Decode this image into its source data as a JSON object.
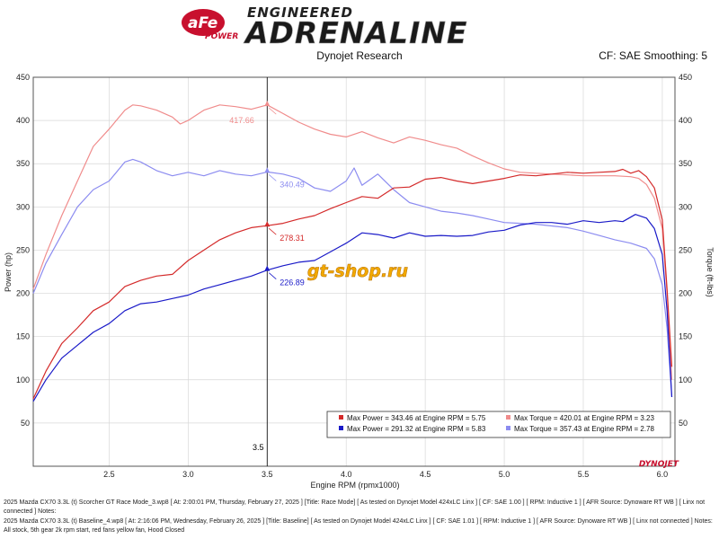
{
  "header": {
    "brand_mark": "aFe",
    "brand_power": "POWER",
    "banner_top": "ENGINEERED",
    "banner_main": "ADRENALINE",
    "subtitle": "Dynojet Research",
    "cf_info": "CF: SAE Smoothing: 5",
    "watermark": "gt-shop.ru",
    "dynojet_logo": "DYNOJET"
  },
  "colors": {
    "power_modified": "#d42a2a",
    "torque_modified": "#f08c8c",
    "power_baseline": "#1a1ac8",
    "torque_baseline": "#8c8cf0",
    "grid": "#d8d8d8",
    "plot_border": "#555555"
  },
  "chart_data": {
    "type": "line",
    "xlabel": "Engine RPM (rpmx1000)",
    "ylabel": "Power (hp)",
    "y2label": "Torque (ft-lbs)",
    "xlim": [
      2.02,
      6.08
    ],
    "ylim": [
      0,
      450
    ],
    "y2lim": [
      0,
      450
    ],
    "xticks": [
      "2.5",
      "3.0",
      "3.5",
      "4.0",
      "4.5",
      "5.0",
      "5.5",
      "6.0"
    ],
    "yticks": [
      "50",
      "100",
      "150",
      "200",
      "250",
      "300",
      "350",
      "400",
      "450"
    ],
    "cursor": {
      "x": 3.5,
      "label": "3.5"
    },
    "series": [
      {
        "axis": "y2",
        "color_key": "torque_modified",
        "x": [
          2.02,
          2.1,
          2.2,
          2.3,
          2.4,
          2.5,
          2.6,
          2.65,
          2.7,
          2.8,
          2.9,
          2.95,
          3.0,
          3.1,
          3.2,
          3.3,
          3.4,
          3.5,
          3.6,
          3.7,
          3.8,
          3.9,
          4.0,
          4.1,
          4.2,
          4.3,
          4.4,
          4.5,
          4.6,
          4.7,
          4.8,
          4.9,
          5.0,
          5.1,
          5.2,
          5.3,
          5.4,
          5.5,
          5.6,
          5.7,
          5.8,
          5.85,
          5.9,
          5.95,
          6.0,
          6.03,
          6.06
        ],
        "values": [
          205,
          245,
          290,
          330,
          370,
          390,
          412,
          418,
          417,
          412,
          404,
          396,
          400,
          412,
          418,
          416,
          413,
          418,
          408,
          398,
          390,
          384,
          381,
          387,
          380,
          374,
          381,
          377,
          372,
          368,
          359,
          351,
          344,
          340,
          339,
          338,
          337,
          336,
          336,
          336,
          335,
          333,
          326,
          310,
          275,
          200,
          100
        ],
        "annotation": {
          "x": 3.5,
          "value": 417.66,
          "label": "417.66"
        }
      },
      {
        "axis": "y2",
        "color_key": "torque_baseline",
        "x": [
          2.02,
          2.1,
          2.2,
          2.3,
          2.4,
          2.5,
          2.6,
          2.65,
          2.7,
          2.8,
          2.9,
          3.0,
          3.1,
          3.2,
          3.3,
          3.4,
          3.5,
          3.6,
          3.7,
          3.8,
          3.9,
          4.0,
          4.05,
          4.1,
          4.2,
          4.3,
          4.4,
          4.5,
          4.6,
          4.7,
          4.8,
          4.9,
          5.0,
          5.1,
          5.2,
          5.3,
          5.4,
          5.5,
          5.6,
          5.7,
          5.8,
          5.9,
          5.95,
          6.0,
          6.03,
          6.06
        ],
        "values": [
          200,
          235,
          268,
          300,
          320,
          330,
          352,
          355,
          352,
          342,
          336,
          340,
          336,
          342,
          338,
          336,
          340.5,
          338,
          333,
          322,
          318,
          330,
          345,
          325,
          338,
          320,
          305,
          300,
          295,
          293,
          290,
          286,
          282,
          281,
          280,
          278,
          276,
          272,
          267,
          262,
          258,
          252,
          240,
          210,
          160,
          80
        ],
        "annotation": {
          "x": 3.5,
          "value": 340.49,
          "label": "340.49"
        }
      },
      {
        "axis": "y",
        "color_key": "power_modified",
        "x": [
          2.02,
          2.1,
          2.2,
          2.3,
          2.4,
          2.5,
          2.6,
          2.7,
          2.8,
          2.9,
          3.0,
          3.1,
          3.2,
          3.3,
          3.4,
          3.5,
          3.6,
          3.7,
          3.8,
          3.9,
          4.0,
          4.1,
          4.2,
          4.3,
          4.4,
          4.5,
          4.6,
          4.7,
          4.8,
          4.9,
          5.0,
          5.1,
          5.2,
          5.3,
          5.4,
          5.5,
          5.6,
          5.7,
          5.75,
          5.8,
          5.85,
          5.9,
          5.95,
          6.0,
          6.03,
          6.06
        ],
        "values": [
          78,
          110,
          142,
          160,
          180,
          190,
          208,
          215,
          220,
          222,
          238,
          250,
          262,
          270,
          276,
          278.3,
          281,
          286,
          290,
          298,
          305,
          312,
          310,
          322,
          323,
          332,
          334,
          330,
          327,
          330,
          333,
          337,
          336,
          338,
          340,
          339,
          340,
          341,
          343.5,
          339,
          342,
          335,
          322,
          285,
          205,
          115
        ],
        "annotation": {
          "x": 3.5,
          "value": 278.31,
          "label": "278.31"
        }
      },
      {
        "axis": "y",
        "color_key": "power_baseline",
        "x": [
          2.02,
          2.1,
          2.2,
          2.3,
          2.4,
          2.5,
          2.6,
          2.7,
          2.8,
          2.9,
          3.0,
          3.1,
          3.2,
          3.3,
          3.4,
          3.5,
          3.6,
          3.7,
          3.8,
          3.9,
          4.0,
          4.1,
          4.2,
          4.3,
          4.4,
          4.5,
          4.6,
          4.7,
          4.8,
          4.9,
          5.0,
          5.1,
          5.2,
          5.3,
          5.4,
          5.5,
          5.6,
          5.7,
          5.75,
          5.83,
          5.9,
          5.95,
          6.0,
          6.03,
          6.06
        ],
        "values": [
          75,
          100,
          125,
          140,
          155,
          165,
          180,
          188,
          190,
          194,
          198,
          205,
          210,
          215,
          220,
          226.9,
          232,
          236,
          238,
          248,
          258,
          270,
          268,
          264,
          270,
          266,
          267,
          266,
          267,
          271,
          273,
          279,
          282,
          282,
          280,
          284,
          282,
          284,
          283,
          291.3,
          287,
          275,
          245,
          180,
          80
        ],
        "annotation": {
          "x": 3.5,
          "value": 226.89,
          "label": "226.89"
        }
      }
    ],
    "legend": {
      "placement": "bottom-right",
      "items": [
        {
          "text": "Max Power = 343.46 at Engine RPM = 5.75",
          "color_key": "power_modified"
        },
        {
          "text": "Max Torque = 420.01 at Engine RPM = 3.23",
          "color_key": "torque_modified"
        },
        {
          "text": "Max Power = 291.32 at Engine RPM = 5.83",
          "color_key": "power_baseline"
        },
        {
          "text": "Max Torque = 357.43 at Engine RPM = 2.78",
          "color_key": "torque_baseline"
        }
      ]
    }
  },
  "notes": [
    "2025 Mazda CX70 3.3L (t) Scorcher GT Race Mode_3.wp8 [ At: 2:00:01 PM, Thursday, February 27, 2025 ] [Title: Race Mode]  [ As tested on Dynojet Model 424xLC Linx ] [ CF: SAE 1.00 ] [ RPM: Inductive 1 ] [ AFR Source: Dynoware RT WB ] [ Linx not connected ] Notes:",
    "2025 Mazda CX70 3.3L (t) Baseline_4.wp8 [ At: 2:16:06 PM, Wednesday, February 26, 2025 ] [Title: Baseline]  [ As tested on Dynojet Model 424xLC Linx ] [ CF: SAE 1.01 ] [ RPM: Inductive 1 ] [ AFR Source: Dynoware RT WB ] [ Linx not connected ] Notes: All stock, 5th gear 2k rpm start, red fans yellow fan, Hood Closed"
  ]
}
